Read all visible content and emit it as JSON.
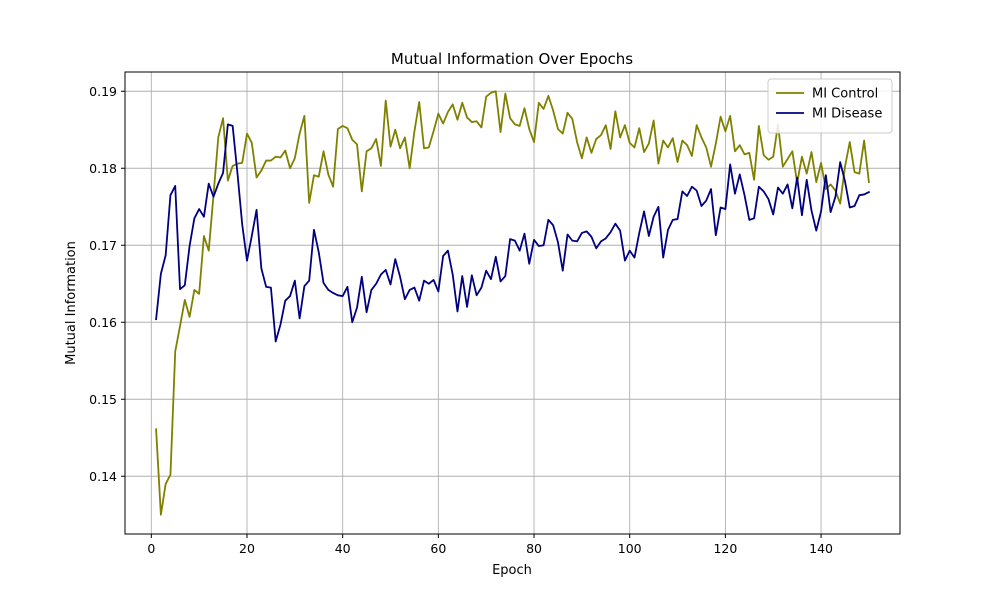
{
  "chart_data": {
    "type": "line",
    "title": "Mutual Information Over Epochs",
    "xlabel": "Epoch",
    "ylabel": "Mutual Information",
    "xlim": [
      -5.5,
      156.5
    ],
    "ylim": [
      0.1325,
      0.1925
    ],
    "xticks": [
      0,
      20,
      40,
      60,
      80,
      100,
      120,
      140
    ],
    "yticks": [
      0.14,
      0.15,
      0.16,
      0.17,
      0.18,
      0.19
    ],
    "ytick_labels": [
      "0.14",
      "0.15",
      "0.16",
      "0.17",
      "0.18",
      "0.19"
    ],
    "grid": true,
    "legend_position": "top-right",
    "x": [
      1,
      2,
      3,
      4,
      5,
      6,
      7,
      8,
      9,
      10,
      11,
      12,
      13,
      14,
      15,
      16,
      17,
      18,
      19,
      20,
      21,
      22,
      23,
      24,
      25,
      26,
      27,
      28,
      29,
      30,
      31,
      32,
      33,
      34,
      35,
      36,
      37,
      38,
      39,
      40,
      41,
      42,
      43,
      44,
      45,
      46,
      47,
      48,
      49,
      50,
      51,
      52,
      53,
      54,
      55,
      56,
      57,
      58,
      59,
      60,
      61,
      62,
      63,
      64,
      65,
      66,
      67,
      68,
      69,
      70,
      71,
      72,
      73,
      74,
      75,
      76,
      77,
      78,
      79,
      80,
      81,
      82,
      83,
      84,
      85,
      86,
      87,
      88,
      89,
      90,
      91,
      92,
      93,
      94,
      95,
      96,
      97,
      98,
      99,
      100,
      101,
      102,
      103,
      104,
      105,
      106,
      107,
      108,
      109,
      110,
      111,
      112,
      113,
      114,
      115,
      116,
      117,
      118,
      119,
      120,
      121,
      122,
      123,
      124,
      125,
      126,
      127,
      128,
      129,
      130,
      131,
      132,
      133,
      134,
      135,
      136,
      137,
      138,
      139,
      140,
      141,
      142,
      143,
      144,
      145,
      146,
      147,
      148,
      149,
      150
    ],
    "series": [
      {
        "name": "MI Control",
        "color": "#808000",
        "values": [
          0.1461,
          0.135,
          0.139,
          0.1402,
          0.1562,
          0.1595,
          0.1629,
          0.1607,
          0.1642,
          0.1637,
          0.1712,
          0.1693,
          0.1765,
          0.184,
          0.1865,
          0.1784,
          0.1803,
          0.1806,
          0.1807,
          0.1845,
          0.1833,
          0.1788,
          0.1797,
          0.181,
          0.181,
          0.1815,
          0.1814,
          0.1823,
          0.18,
          0.1813,
          0.1845,
          0.1868,
          0.1755,
          0.1791,
          0.1789,
          0.1822,
          0.1792,
          0.1776,
          0.1851,
          0.1855,
          0.1852,
          0.1837,
          0.1831,
          0.177,
          0.1822,
          0.1826,
          0.1838,
          0.1803,
          0.1888,
          0.1828,
          0.185,
          0.1826,
          0.184,
          0.18,
          0.1848,
          0.1886,
          0.1826,
          0.1827,
          0.1848,
          0.1871,
          0.1858,
          0.1873,
          0.1883,
          0.1863,
          0.1885,
          0.1866,
          0.186,
          0.1861,
          0.1853,
          0.1893,
          0.1898,
          0.19,
          0.1847,
          0.1897,
          0.1865,
          0.1857,
          0.1855,
          0.1878,
          0.1851,
          0.1834,
          0.1885,
          0.1877,
          0.1894,
          0.1875,
          0.1851,
          0.1845,
          0.1872,
          0.1864,
          0.1834,
          0.1813,
          0.184,
          0.182,
          0.1838,
          0.1843,
          0.1856,
          0.1825,
          0.1874,
          0.184,
          0.1856,
          0.1833,
          0.1827,
          0.1852,
          0.1821,
          0.1832,
          0.1862,
          0.1806,
          0.1836,
          0.1827,
          0.1839,
          0.1808,
          0.1836,
          0.183,
          0.1816,
          0.1856,
          0.184,
          0.1827,
          0.1802,
          0.1832,
          0.1867,
          0.1848,
          0.1868,
          0.1822,
          0.183,
          0.1818,
          0.182,
          0.1785,
          0.1855,
          0.1817,
          0.1811,
          0.1815,
          0.1857,
          0.1802,
          0.1812,
          0.1822,
          0.1781,
          0.1815,
          0.1793,
          0.1821,
          0.1782,
          0.1807,
          0.1773,
          0.1779,
          0.1771,
          0.1754,
          0.1802,
          0.1834,
          0.1795,
          0.1793,
          0.1836,
          0.1782
        ]
      },
      {
        "name": "MI Disease",
        "color": "#000080",
        "values": [
          0.1604,
          0.1663,
          0.1687,
          0.1765,
          0.1777,
          0.1643,
          0.1648,
          0.1699,
          0.1735,
          0.1747,
          0.1737,
          0.178,
          0.1763,
          0.178,
          0.1794,
          0.1857,
          0.1855,
          0.1794,
          0.1727,
          0.168,
          0.1712,
          0.1746,
          0.167,
          0.1646,
          0.1645,
          0.1575,
          0.1597,
          0.1628,
          0.1634,
          0.1654,
          0.1605,
          0.1647,
          0.1654,
          0.172,
          0.1691,
          0.1651,
          0.1642,
          0.1638,
          0.1635,
          0.1634,
          0.1646,
          0.16,
          0.1619,
          0.1659,
          0.1613,
          0.1642,
          0.165,
          0.1662,
          0.1668,
          0.1649,
          0.1682,
          0.1659,
          0.163,
          0.1642,
          0.1645,
          0.1628,
          0.1654,
          0.165,
          0.1655,
          0.164,
          0.1686,
          0.1693,
          0.1662,
          0.1614,
          0.166,
          0.162,
          0.1661,
          0.1635,
          0.1645,
          0.1667,
          0.1656,
          0.1685,
          0.1653,
          0.166,
          0.1708,
          0.1706,
          0.1693,
          0.1715,
          0.1676,
          0.1707,
          0.1699,
          0.17,
          0.1733,
          0.1726,
          0.1704,
          0.1667,
          0.1714,
          0.1706,
          0.1705,
          0.1716,
          0.1718,
          0.1711,
          0.1696,
          0.1705,
          0.1709,
          0.1717,
          0.1728,
          0.1719,
          0.168,
          0.1693,
          0.1684,
          0.1716,
          0.1744,
          0.1712,
          0.1737,
          0.175,
          0.1684,
          0.172,
          0.1733,
          0.1734,
          0.177,
          0.1764,
          0.1776,
          0.1771,
          0.1751,
          0.1758,
          0.1773,
          0.1713,
          0.1749,
          0.1747,
          0.1805,
          0.1767,
          0.1792,
          0.1765,
          0.1733,
          0.1735,
          0.1776,
          0.177,
          0.176,
          0.174,
          0.1775,
          0.1767,
          0.1779,
          0.1748,
          0.1788,
          0.1739,
          0.1785,
          0.1745,
          0.1719,
          0.1744,
          0.1791,
          0.1743,
          0.1763,
          0.1808,
          0.1783,
          0.1749,
          0.1751,
          0.1765,
          0.1766,
          0.1769
        ]
      }
    ]
  }
}
